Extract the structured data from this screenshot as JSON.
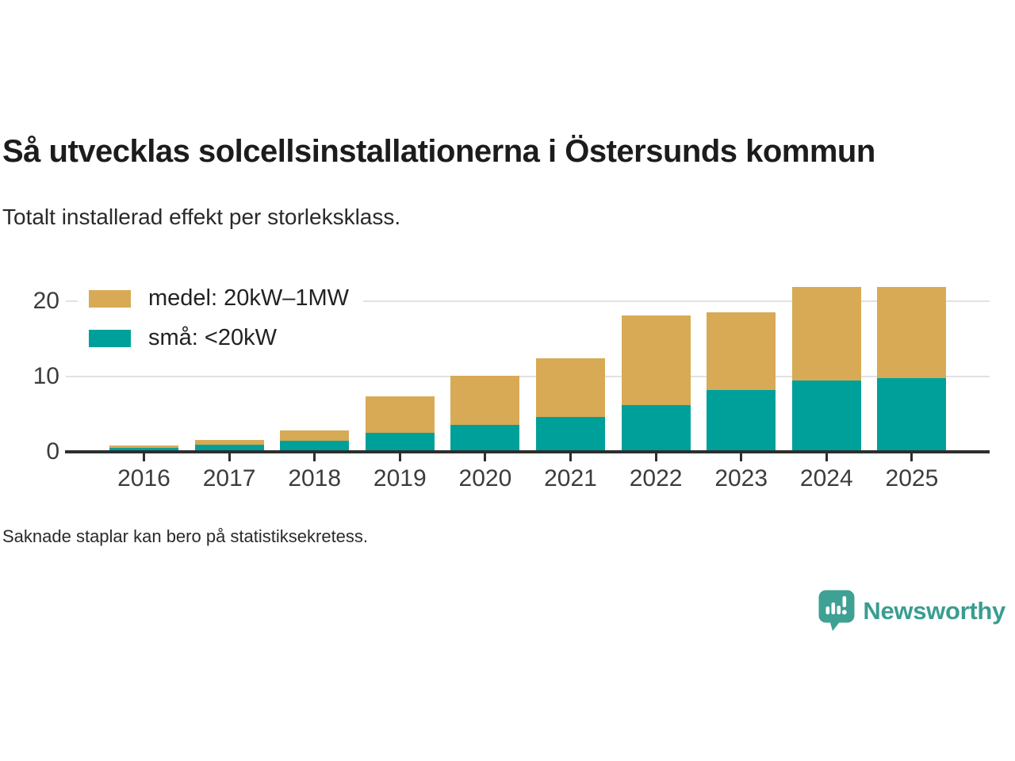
{
  "header": {
    "title": "Så utvecklas solcellsinstallationerna i Östersunds kommun",
    "subtitle": "Totalt installerad effekt per storleksklass."
  },
  "chart_data": {
    "type": "bar",
    "stacked": true,
    "title": "Så utvecklas solcellsinstallationerna i Östersunds kommun",
    "subtitle": "Totalt installerad effekt per storleksklass.",
    "categories": [
      "2016",
      "2017",
      "2018",
      "2019",
      "2020",
      "2021",
      "2022",
      "2023",
      "2024",
      "2025"
    ],
    "series": [
      {
        "name": "små: <20kW",
        "color": "#00a09a",
        "values": [
          0.5,
          1.0,
          1.5,
          2.5,
          3.6,
          4.6,
          6.2,
          8.2,
          9.5,
          9.8
        ]
      },
      {
        "name": "medel: 20kW–1MW",
        "color": "#d8aa55",
        "values": [
          0.3,
          0.6,
          1.4,
          4.9,
          6.5,
          7.9,
          11.9,
          10.4,
          12.4,
          12.1
        ]
      }
    ],
    "legend": [
      {
        "label": "medel: 20kW–1MW",
        "color": "#d8aa55"
      },
      {
        "label": "små: <20kW",
        "color": "#00a09a"
      }
    ],
    "legend_position": "top-left",
    "xlabel": "",
    "ylabel": "",
    "yticks": [
      0,
      10,
      20
    ],
    "ylim": [
      0,
      23.5
    ],
    "grid": "horizontal"
  },
  "footnote": "Saknade staplar kan bero på statistiksekretess.",
  "branding": {
    "logo_text": "Newsworthy",
    "logo_icon": "bar-chart-speech-bubble",
    "color": "#3a9d90"
  },
  "colors": {
    "bar_small": "#00a09a",
    "bar_medium": "#d8aa55",
    "axis_line": "#2e2e2e",
    "gridline": "#e2e2e2",
    "text": "#1c1c1c"
  }
}
